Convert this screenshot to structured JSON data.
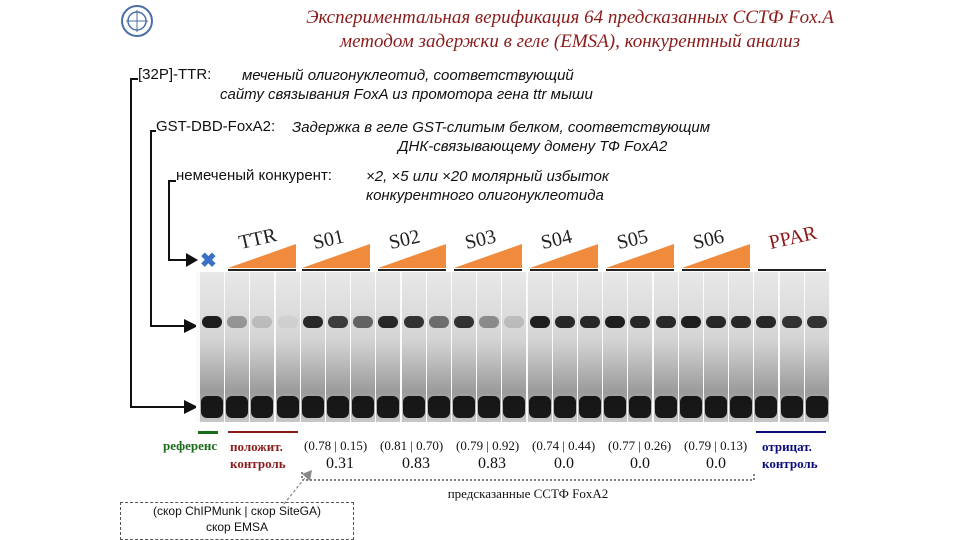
{
  "title_line1": "Экспериментальная верификация 64 предсказанных ССТФ Fox.A",
  "title_line2": "методом задержки в геле (EMSA), конкурентный анализ",
  "probe": {
    "label": "[32P]-TTR:",
    "desc_line1": "меченый олигонуклеотид, соответствующий",
    "desc_line2": "сайту связывания FoxA из промотора гена ttr мыши"
  },
  "protein": {
    "label": "GST-DBD-FoxA2:",
    "desc_line1": "Задержка в геле GST-слитым белком, соответствующим",
    "desc_line2": "ДНК-связывающему домену ТФ FoxA2"
  },
  "competitor": {
    "label": "немеченый конкурент:",
    "desc_line1": "×2, ×5 или ×20 молярный избыток",
    "desc_line2": "конкурентного олигонуклеотида"
  },
  "no_competitor_mark": "✖",
  "samples": [
    "TTR",
    "S01",
    "S02",
    "S03",
    "S04",
    "S05",
    "S06",
    "PPAR"
  ],
  "legend": {
    "reference": "референс",
    "positive_line1": "положит.",
    "positive_line2": "контроль",
    "negative_line1": "отрицат.",
    "negative_line2": "контроль"
  },
  "scores": [
    "(0.78 | 0.15)",
    "(0.81 | 0.70)",
    "(0.79 | 0.92)",
    "(0.74 | 0.44)",
    "(0.77 | 0.26)",
    "(0.79 | 0.13)"
  ],
  "emsa_scores": [
    "0.31",
    "0.83",
    "0.83",
    "0.0",
    "0.0",
    "0.0"
  ],
  "predicted_label": "предсказанные ССТФ FoxA2",
  "box": {
    "line1": "(скор ChIPMunk | скор SiteGA)",
    "line2": "скор EMSA"
  },
  "colors": {
    "title": "#8b1a1a",
    "wedge": "#f08a3c",
    "positive": "#8b1a1a",
    "negative": "#0a0a7a",
    "reference": "#1a6b1a",
    "no_comp_mark": "#3a6fc8"
  }
}
